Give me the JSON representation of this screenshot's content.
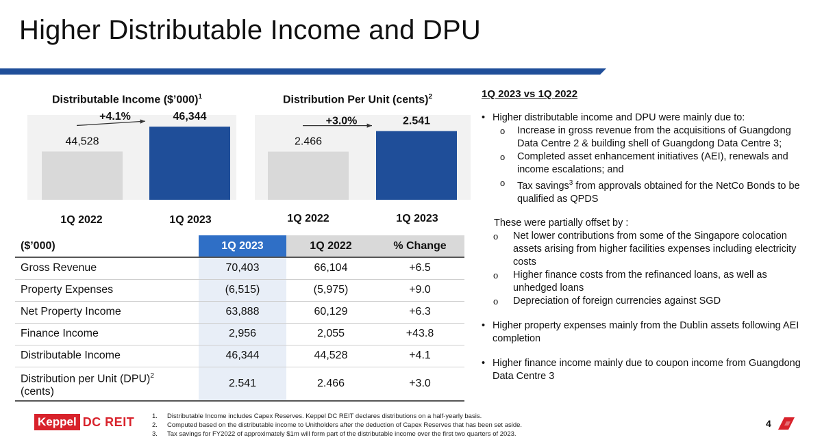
{
  "title": "Higher Distributable Income and DPU",
  "colors": {
    "accent": "#1f4e99",
    "bar_2023": "#1f4e99",
    "bar_2022": "#d9d9d9",
    "brand_red": "#d8222b"
  },
  "chart_data": [
    {
      "type": "bar",
      "title": "Distributable Income ($’000)",
      "title_sup": "1",
      "categories": [
        "1Q 2022",
        "1Q 2023"
      ],
      "values": [
        44528,
        46344
      ],
      "value_labels": [
        "44,528",
        "46,344"
      ],
      "annotation": "+4.1%",
      "ylim": [
        41000,
        47200
      ]
    },
    {
      "type": "bar",
      "title": "Distribution Per Unit (cents)",
      "title_sup": "2",
      "categories": [
        "1Q 2022",
        "1Q 2023"
      ],
      "values": [
        2.466,
        2.541
      ],
      "value_labels": [
        "2.466",
        "2.541"
      ],
      "annotation": "+3.0%",
      "ylim": [
        2.29,
        2.6
      ]
    }
  ],
  "table": {
    "headers": [
      "($’000)",
      "1Q 2023",
      "1Q 2022",
      "% Change"
    ],
    "rows": [
      [
        "Gross Revenue",
        "70,403",
        "66,104",
        "+6.5"
      ],
      [
        "Property Expenses",
        "(6,515)",
        "(5,975)",
        "+9.0"
      ],
      [
        "Net Property Income",
        "63,888",
        "60,129",
        "+6.3"
      ],
      [
        "Finance Income",
        "2,956",
        "2,055",
        "+43.8"
      ],
      [
        "Distributable Income",
        "46,344",
        "44,528",
        "+4.1"
      ]
    ],
    "last_row": {
      "label_line1": "Distribution per Unit (DPU)",
      "label_sup": "2",
      "label_line2": "(cents)",
      "c2023": "2.541",
      "c2022": "2.466",
      "change": "+3.0"
    }
  },
  "commentary": {
    "heading": "1Q 2023 vs 1Q 2022",
    "b1": "Higher distributable income and DPU were mainly due to:",
    "b1_sub1": "Increase in gross revenue from the acquisitions of Guangdong Data Centre 2 & building shell of Guangdong Data Centre 3;",
    "b1_sub2": "Completed asset enhancement initiatives (AEI), renewals and income escalations; and",
    "b1_sub3_pre": "Tax savings",
    "b1_sub3_sup": "3",
    "b1_sub3_post": " from approvals obtained for the NetCo Bonds to be qualified as QPDS",
    "partial": "These were partially offset by :",
    "p_sub1": "Net lower contributions from some of the Singapore colocation assets arising from higher facilities expenses including electricity costs",
    "p_sub2": "Higher finance costs from the refinanced loans, as well as unhedged loans",
    "p_sub3": "Depreciation of foreign currencies against SGD",
    "b2": "Higher property expenses mainly from the Dublin assets following AEI completion",
    "b3": "Higher finance income mainly due to coupon income from Guangdong Data Centre 3"
  },
  "footer": {
    "logo_part1": "Keppel",
    "logo_part2": "DC REIT",
    "notes": [
      {
        "n": "1.",
        "text": "Distributable Income includes Capex Reserves. Keppel DC REIT declares distributions on a half-yearly basis."
      },
      {
        "n": "2.",
        "text": "Computed based on the distributable income to Unitholders after the deduction of Capex Reserves that has been set aside."
      },
      {
        "n": "3.",
        "text": "Tax savings for FY2022 of approximately $1m will form part of the distributable income over the first two quarters of 2023."
      }
    ],
    "page": "4"
  }
}
